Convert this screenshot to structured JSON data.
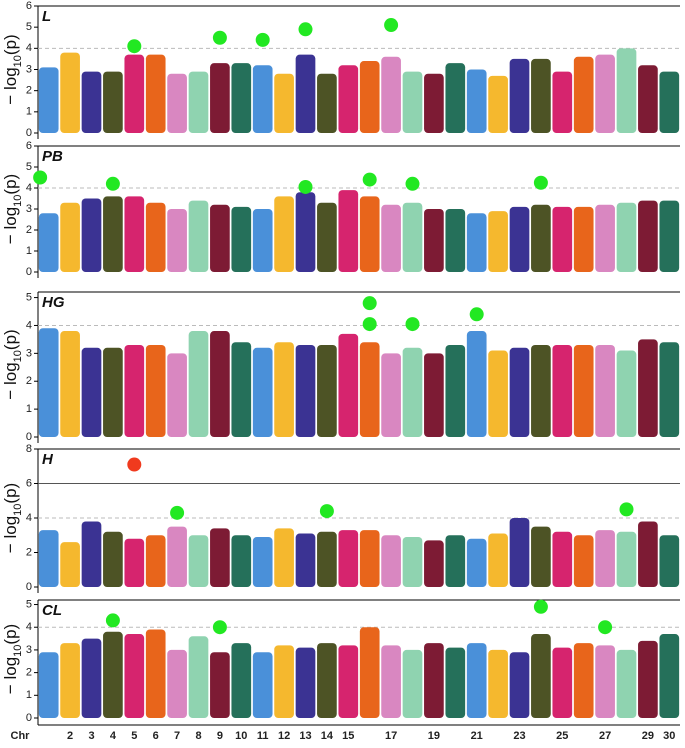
{
  "x_axis": {
    "label": "Chr",
    "categories": [
      null,
      "2",
      "3",
      "4",
      "5",
      "6",
      "7",
      "8",
      "9",
      "10",
      "11",
      "12",
      "13",
      "14",
      "15",
      null,
      "17",
      null,
      "19",
      null,
      "21",
      null,
      "23",
      null,
      "25",
      null,
      "27",
      null,
      "29",
      "30"
    ]
  },
  "colors": [
    "#4a90d9",
    "#f5b82e",
    "#3b3393",
    "#4d5325",
    "#d6246e",
    "#e8651b",
    "#d987c1",
    "#8fd3b0",
    "#7d1b34",
    "#25705a",
    "#4a90d9",
    "#f5b82e",
    "#3b3393",
    "#4d5325",
    "#d6246e",
    "#e8651b",
    "#d987c1",
    "#8fd3b0",
    "#7d1b34",
    "#25705a",
    "#4a90d9",
    "#f5b82e",
    "#3b3393",
    "#4d5325",
    "#d6246e",
    "#e8651b",
    "#d987c1",
    "#8fd3b0",
    "#7d1b34",
    "#25705a"
  ],
  "chart_data": [
    {
      "type": "scatter",
      "title": "L",
      "ylabel": [
        "− log",
        "10",
        "(p)"
      ],
      "ylim": [
        0,
        6
      ],
      "yticks": [
        0,
        1,
        2,
        3,
        4,
        5,
        6
      ],
      "suggestive_line": 4,
      "values": [
        3.1,
        3.8,
        2.9,
        2.9,
        3.7,
        3.7,
        2.8,
        2.9,
        3.3,
        3.3,
        3.2,
        2.8,
        3.7,
        2.8,
        3.2,
        3.4,
        3.6,
        2.9,
        2.8,
        3.3,
        3.0,
        2.7,
        3.5,
        3.5,
        2.9,
        3.6,
        3.7,
        4.0,
        3.2,
        2.9
      ],
      "points": [
        {
          "color": "#22e822",
          "x": [
            5,
            9,
            11,
            13,
            17
          ],
          "values": [
            4.1,
            4.5,
            4.4,
            4.9,
            5.1
          ]
        }
      ]
    },
    {
      "type": "scatter",
      "title": "PB",
      "ylabel": [
        "− log",
        "10",
        "(p)"
      ],
      "ylim": [
        0,
        6
      ],
      "yticks": [
        0,
        1,
        2,
        3,
        4,
        5,
        6
      ],
      "suggestive_line": 4,
      "values": [
        2.8,
        3.3,
        3.5,
        3.6,
        3.6,
        3.3,
        3.0,
        3.4,
        3.2,
        3.1,
        3.0,
        3.6,
        3.8,
        3.3,
        3.9,
        3.6,
        3.2,
        3.3,
        3.0,
        3.0,
        2.8,
        2.9,
        3.1,
        3.2,
        3.1,
        3.1,
        3.2,
        3.3,
        3.4,
        3.4
      ],
      "points": [
        {
          "color": "#22e822",
          "x": [
            0.6,
            4,
            13,
            16,
            18,
            24
          ],
          "values": [
            4.5,
            4.2,
            4.05,
            4.4,
            4.2,
            4.25
          ]
        }
      ]
    },
    {
      "type": "scatter",
      "title": "HG",
      "ylabel": [
        "− log",
        "10",
        "(p)"
      ],
      "ylim": [
        0,
        5.2
      ],
      "yticks": [
        0,
        1,
        2,
        3,
        4,
        5
      ],
      "suggestive_line": 4,
      "values": [
        3.9,
        3.8,
        3.2,
        3.2,
        3.3,
        3.3,
        3.0,
        3.8,
        3.8,
        3.4,
        3.2,
        3.4,
        3.3,
        3.3,
        3.7,
        3.4,
        3.0,
        3.2,
        3.0,
        3.3,
        3.8,
        3.1,
        3.2,
        3.3,
        3.3,
        3.3,
        3.3,
        3.1,
        3.5,
        3.4
      ],
      "points": [
        {
          "color": "#22e822",
          "x": [
            16,
            16,
            18,
            21
          ],
          "values": [
            4.8,
            4.05,
            4.05,
            4.4
          ]
        }
      ]
    },
    {
      "type": "scatter",
      "title": "H",
      "ylabel": [
        "− log",
        "10",
        "(p)"
      ],
      "ylim": [
        0,
        8
      ],
      "yticks": [
        0,
        2,
        4,
        6,
        8
      ],
      "suggestive_line": 4,
      "significance_line": 6,
      "values": [
        3.3,
        2.6,
        3.8,
        3.2,
        2.8,
        3.0,
        3.5,
        3.0,
        3.4,
        3.0,
        2.9,
        3.4,
        3.1,
        3.2,
        3.3,
        3.3,
        3.0,
        2.9,
        2.7,
        3.0,
        2.8,
        3.1,
        4.0,
        3.5,
        3.2,
        3.0,
        3.3,
        3.2,
        3.8,
        3.0
      ],
      "points": [
        {
          "color": "#f03a1e",
          "x": [
            5
          ],
          "values": [
            7.1
          ]
        },
        {
          "color": "#22e822",
          "x": [
            7,
            14,
            28
          ],
          "values": [
            4.3,
            4.4,
            4.5
          ]
        }
      ]
    },
    {
      "type": "scatter",
      "title": "CL",
      "ylabel": [
        "− log",
        "10",
        "(p)"
      ],
      "ylim": [
        0,
        5.2
      ],
      "yticks": [
        0,
        1,
        2,
        3,
        4,
        5
      ],
      "suggestive_line": 4,
      "values": [
        2.9,
        3.3,
        3.5,
        3.8,
        3.7,
        3.9,
        3.0,
        3.6,
        2.9,
        3.3,
        2.9,
        3.2,
        3.1,
        3.3,
        3.2,
        4.0,
        3.2,
        3.0,
        3.3,
        3.1,
        3.3,
        3.0,
        2.9,
        3.7,
        3.1,
        3.3,
        3.2,
        3.0,
        3.4,
        3.7
      ],
      "points": [
        {
          "color": "#22e822",
          "x": [
            4,
            9,
            24,
            27
          ],
          "values": [
            4.3,
            4.0,
            4.9,
            4.0
          ]
        }
      ]
    }
  ]
}
